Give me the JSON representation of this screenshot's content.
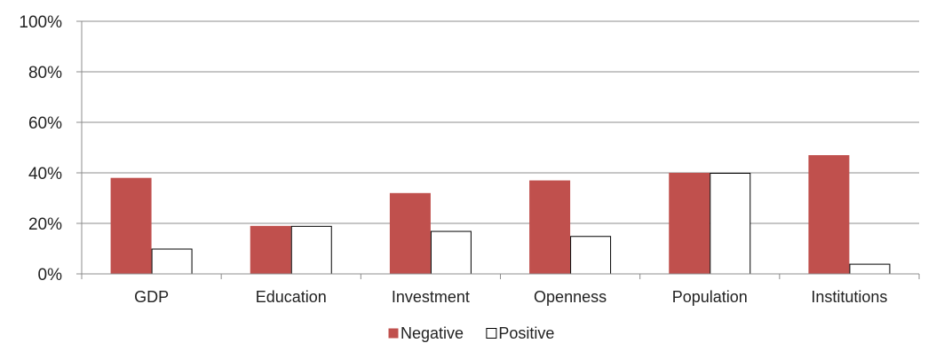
{
  "chart_data": {
    "type": "bar",
    "categories": [
      "GDP",
      "Education",
      "Investment",
      "Openness",
      "Population",
      "Institutions"
    ],
    "series": [
      {
        "name": "Negative",
        "values": [
          38,
          19,
          32,
          37,
          40,
          47
        ],
        "color": "#c0504d"
      },
      {
        "name": "Positive",
        "values": [
          10,
          19,
          17,
          15,
          40,
          4
        ],
        "color": "#ffffff"
      }
    ],
    "ylim": [
      0,
      100
    ],
    "yticks": [
      "0%",
      "20%",
      "40%",
      "60%",
      "80%",
      "100%"
    ],
    "ytick_values": [
      0,
      20,
      40,
      60,
      80,
      100
    ],
    "grid": true,
    "legend_position": "bottom-center",
    "title": "",
    "xlabel": "",
    "ylabel": ""
  }
}
